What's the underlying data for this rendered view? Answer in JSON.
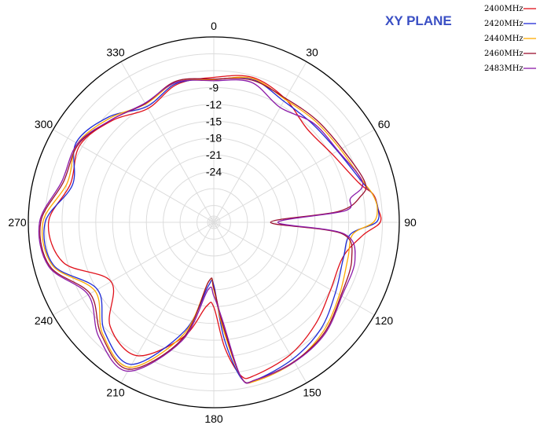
{
  "chart_data": {
    "type": "polar-line",
    "title": "XY PLANE",
    "angle_ticks": [
      "0",
      "30",
      "60",
      "90",
      "120",
      "150",
      "180",
      "210",
      "240",
      "270",
      "300",
      "330"
    ],
    "radial_ticks": [
      "-9",
      "-12",
      "-15",
      "-18",
      "-21",
      "-24"
    ],
    "rlim": [
      -33,
      0
    ],
    "grid": true,
    "legend_position": "top-right",
    "angles_deg": [
      0,
      15,
      30,
      45,
      60,
      75,
      80,
      85,
      90,
      95,
      105,
      120,
      135,
      150,
      165,
      170,
      175,
      180,
      185,
      195,
      210,
      225,
      240,
      255,
      270,
      285,
      300,
      315,
      330,
      345
    ],
    "series": [
      {
        "name": "2400MHz",
        "color": "#e0101a",
        "values": [
          -7.2,
          -6.3,
          -7.6,
          -9.5,
          -8.7,
          -6.2,
          -4.2,
          -3.7,
          -3.4,
          -6.4,
          -9.2,
          -9.0,
          -7.4,
          -5.8,
          -4.8,
          -5.3,
          -10.6,
          -17.9,
          -18.0,
          -11.8,
          -5.6,
          -6.9,
          -11.9,
          -5.3,
          -3.6,
          -6.6,
          -5.5,
          -7.4,
          -9.6,
          -7.6
        ]
      },
      {
        "name": "2420MHz",
        "color": "#1f2bd6",
        "values": [
          -7.6,
          -6.6,
          -8.1,
          -8.2,
          -7.6,
          -5.6,
          -4.3,
          -3.7,
          -4.1,
          -8.6,
          -9.1,
          -8.0,
          -6.1,
          -4.9,
          -4.0,
          -4.8,
          -12.4,
          -21.8,
          -21.6,
          -13.0,
          -3.8,
          -5.5,
          -9.1,
          -3.5,
          -3.0,
          -7.0,
          -4.7,
          -6.5,
          -9.2,
          -7.4
        ]
      },
      {
        "name": "2440MHz",
        "color": "#ffaa00",
        "values": [
          -7.6,
          -6.5,
          -7.7,
          -7.5,
          -7.0,
          -5.4,
          -4.3,
          -3.8,
          -4.6,
          -8.2,
          -8.3,
          -7.2,
          -5.5,
          -4.3,
          -3.8,
          -5.0,
          -14.0,
          -21.0,
          -22.4,
          -12.4,
          -3.2,
          -5.0,
          -8.6,
          -3.3,
          -2.6,
          -6.0,
          -5.0,
          -6.8,
          -8.7,
          -7.2
        ]
      },
      {
        "name": "2460MHz",
        "color": "#9b1030",
        "values": [
          -7.5,
          -6.8,
          -7.5,
          -7.2,
          -6.7,
          -5.2,
          -6.5,
          -10.7,
          -22.9,
          -10.2,
          -7.6,
          -6.9,
          -5.2,
          -4.4,
          -4.0,
          -5.0,
          -14.8,
          -21.3,
          -22.4,
          -11.6,
          -2.8,
          -4.7,
          -7.6,
          -2.8,
          -2.2,
          -5.3,
          -5.2,
          -7.2,
          -8.6,
          -7.0
        ]
      },
      {
        "name": "2483MHz",
        "color": "#8b1aa8",
        "values": [
          -7.8,
          -7.2,
          -9.4,
          -8.0,
          -7.5,
          -5.6,
          -8.3,
          -9.6,
          -21.6,
          -9.8,
          -7.0,
          -6.7,
          -5.0,
          -4.3,
          -4.0,
          -5.0,
          -15.6,
          -19.9,
          -20.9,
          -11.2,
          -2.4,
          -4.1,
          -7.2,
          -2.6,
          -2.0,
          -5.0,
          -5.0,
          -7.2,
          -8.5,
          -7.2
        ]
      }
    ]
  }
}
